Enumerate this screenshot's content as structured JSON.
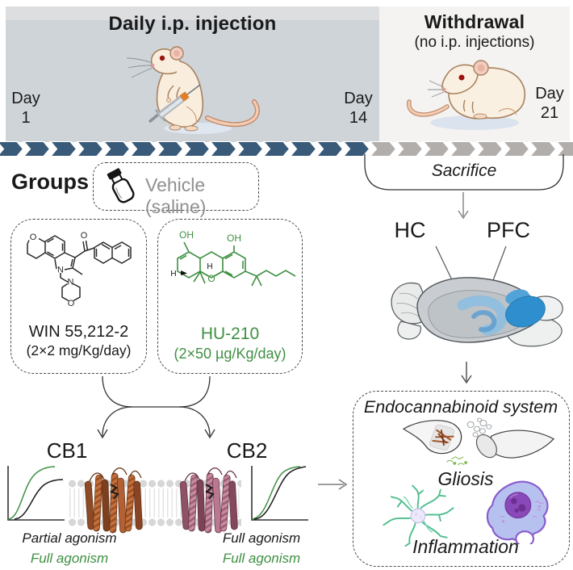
{
  "colors": {
    "chevron_daily": "#3a5a7a",
    "chevron_withdrawal": "#b2aeab",
    "green": "#3f9043",
    "hippocampus_blue": "#8fbede",
    "pfc_blue": "#2f8fce"
  },
  "timeline": {
    "day_word": "Day",
    "daily": {
      "title": "Daily i.p. injection",
      "start_day": "1",
      "end_day": "14"
    },
    "withdrawal": {
      "title": "Withdrawal",
      "subtitle": "(no i.p. injections)",
      "end_day": "21"
    }
  },
  "groups": {
    "heading": "Groups",
    "vehicle_label": "Vehicle (saline)",
    "win": {
      "name": "WIN 55,212-2",
      "dose": "(2×2 mg/Kg/day)"
    },
    "hu": {
      "name": "HU-210",
      "dose": "(2×50 µg/Kg/day)"
    }
  },
  "receptors": {
    "cb1": {
      "label": "CB1",
      "line1": "Partial agonism",
      "line2": "Full agonism"
    },
    "cb2": {
      "label": "CB2",
      "line1": "Full agonism",
      "line2": "Full agonism"
    }
  },
  "procedure": {
    "sacrifice": "Sacrifice"
  },
  "brain": {
    "hc": "HC",
    "pfc": "PFC"
  },
  "outcomes": {
    "title": "Endocannabinoid system",
    "gliosis": "Gliosis",
    "inflammation": "Inflammation"
  }
}
